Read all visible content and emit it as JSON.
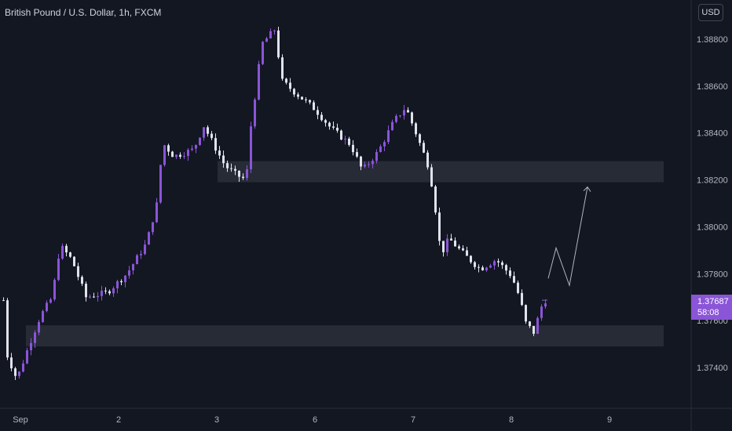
{
  "header": {
    "symbol_title": "British Pound / U.S. Dollar, 1h, FXCM"
  },
  "currency_button": {
    "label": "USD"
  },
  "last_price": {
    "value": "1.37687",
    "countdown": "58:08"
  },
  "colors": {
    "background": "#131722",
    "up_candle": "#8a55d7",
    "down_candle": "#e0e3eb",
    "zone": "#2a2e39",
    "projection": "#b2b5be",
    "text": "#b2b5be"
  },
  "chart_data": {
    "type": "candlestick",
    "y_ticks": [
      "1.38800",
      "1.38600",
      "1.38400",
      "1.38200",
      "1.38000",
      "1.37800",
      "1.37600",
      "1.37400"
    ],
    "x_ticks": [
      "Sep",
      "2",
      "3",
      "6",
      "7",
      "8",
      "9"
    ],
    "ylim": [
      1.3725,
      1.3898
    ],
    "zones": [
      {
        "from": 1.3819,
        "to": 1.3828
      },
      {
        "from": 1.3749,
        "to": 1.3758
      }
    ],
    "projection": [
      1.3778,
      1.3791,
      1.3775,
      1.3817
    ],
    "anchors": [
      {
        "label": "Sep",
        "price": 1.376
      },
      {
        "label": "2",
        "price": 1.3776
      },
      {
        "label": "3",
        "price": 1.3823
      },
      {
        "label": "6",
        "price": 1.3866
      },
      {
        "label": "7",
        "price": 1.3829
      },
      {
        "label": "8",
        "price": 1.376
      },
      {
        "label": "8 end",
        "price": 1.3769
      }
    ],
    "last_price": 1.37687
  }
}
